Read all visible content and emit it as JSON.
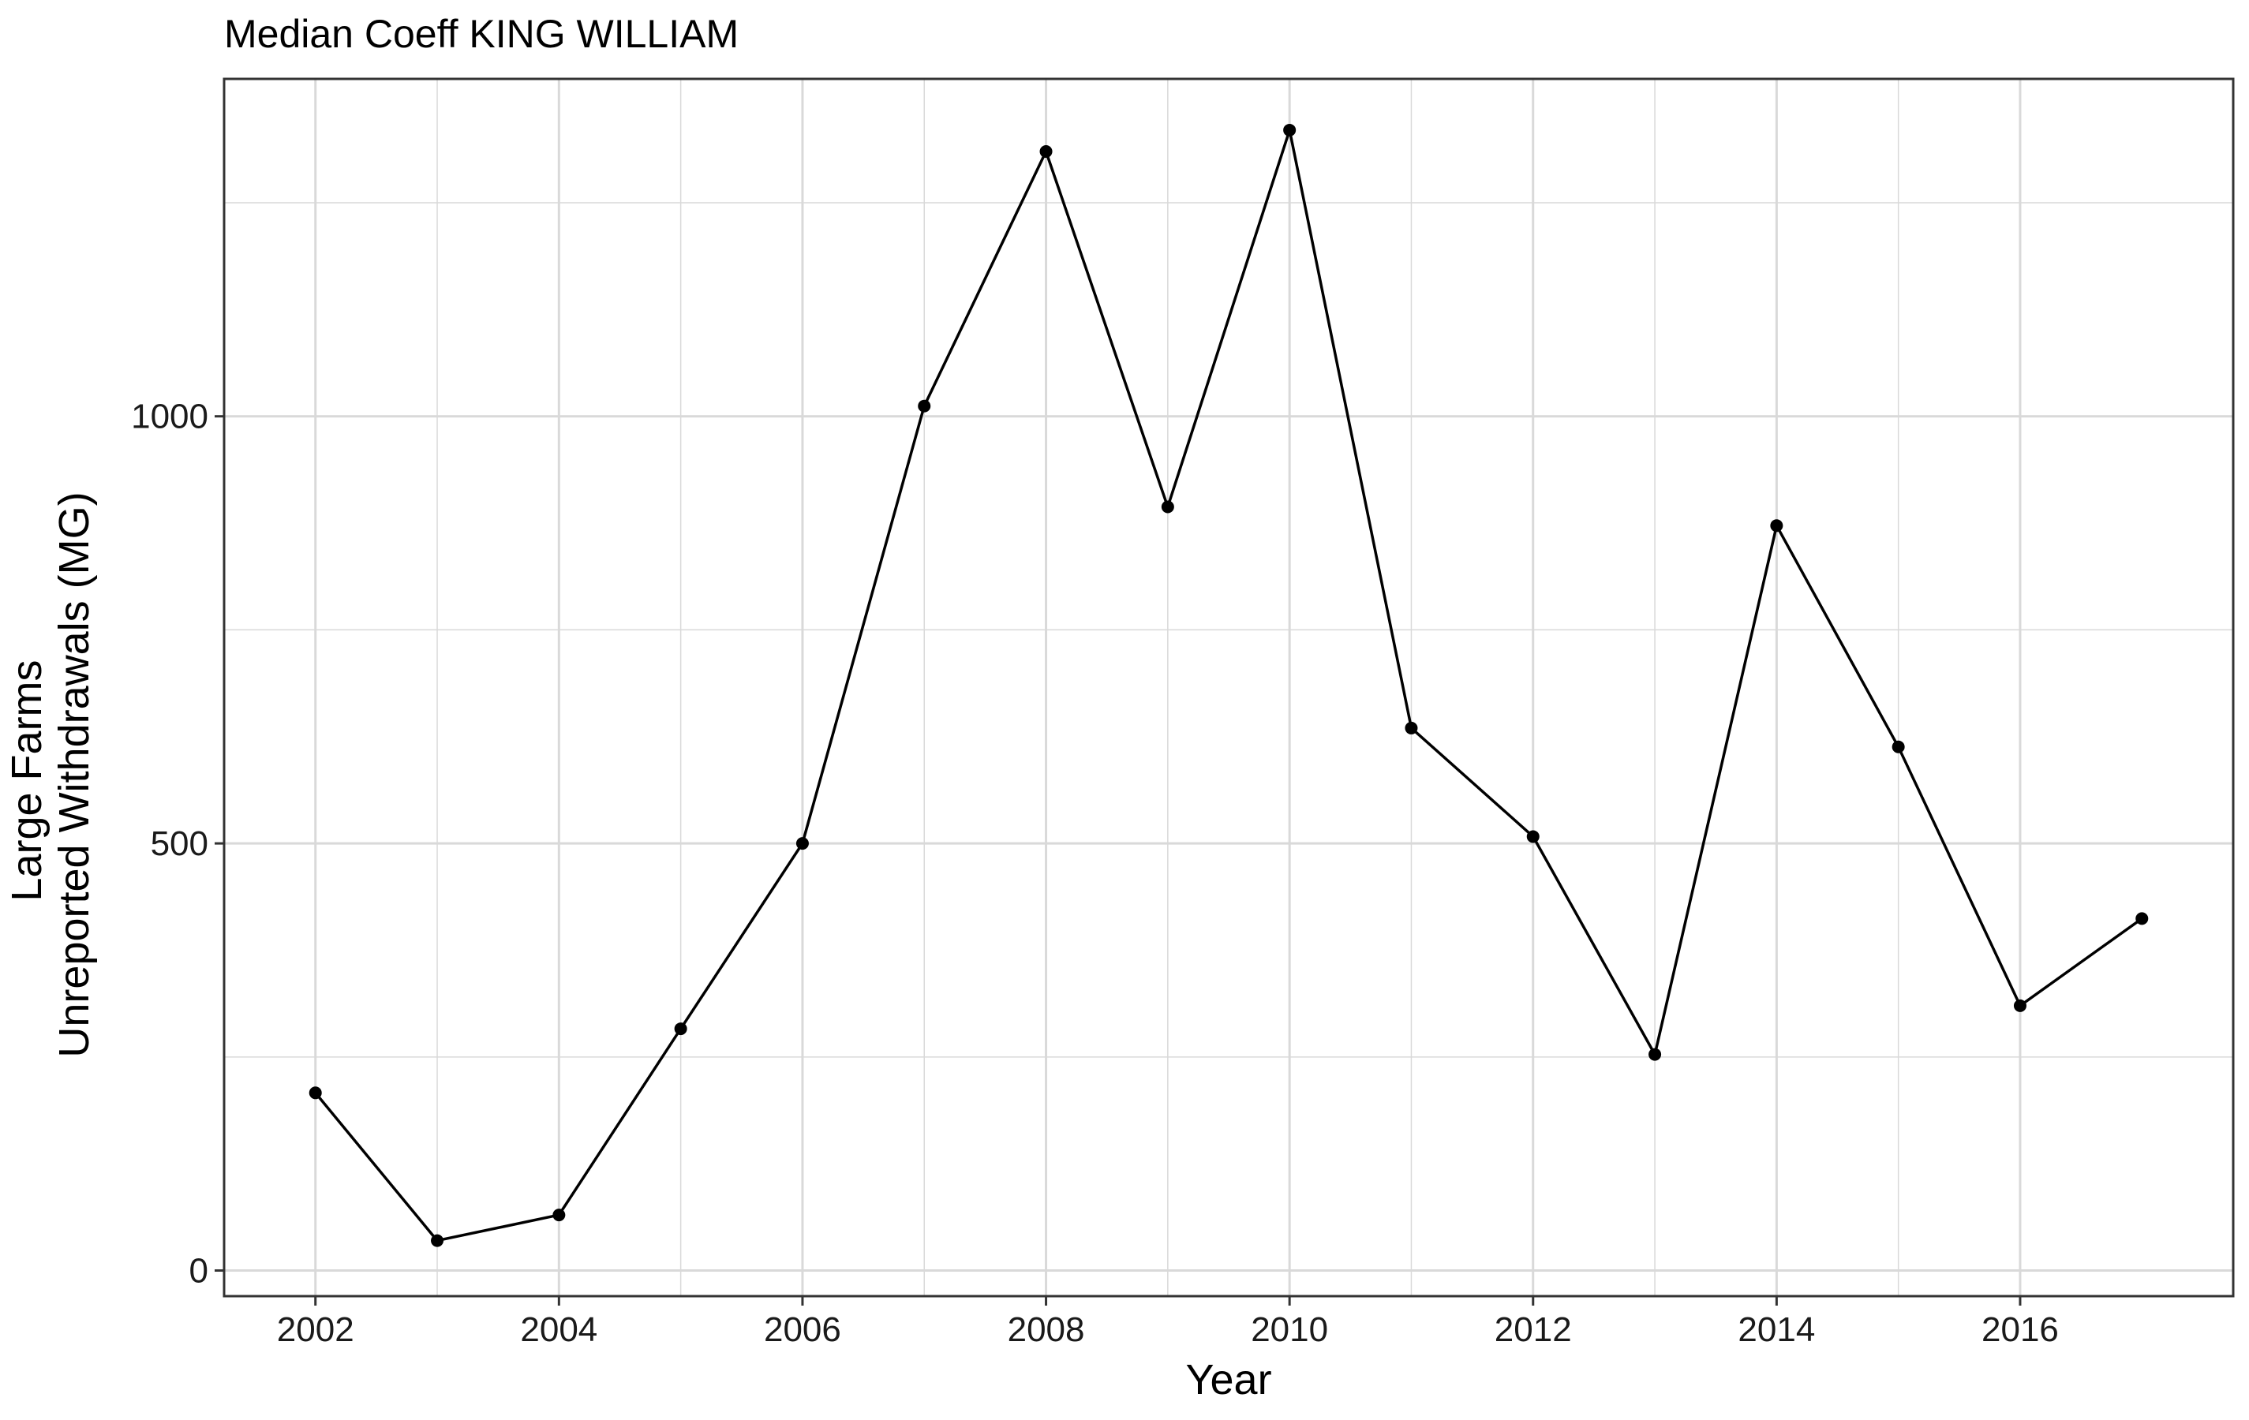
{
  "chart_data": {
    "type": "line",
    "title": "Median Coeff KING WILLIAM",
    "xlabel": "Year",
    "ylabel_lines": [
      "Large Farms",
      "Unreported Withdrawals (MG)"
    ],
    "x": [
      2002,
      2003,
      2004,
      2005,
      2006,
      2007,
      2008,
      2009,
      2010,
      2011,
      2012,
      2013,
      2014,
      2015,
      2016,
      2017
    ],
    "series": [
      {
        "values": [
          208,
          35,
          65,
          283,
          500,
          1012,
          1310,
          894,
          1335,
          635,
          508,
          253,
          872,
          613,
          310,
          412
        ]
      }
    ],
    "xlim": [
      2001.25,
      2017.75
    ],
    "ylim": [
      -30,
      1395
    ],
    "x_ticks": [
      2002,
      2004,
      2006,
      2008,
      2010,
      2012,
      2014,
      2016
    ],
    "y_ticks": [
      0,
      500,
      1000
    ],
    "grid": true,
    "legend": "none",
    "colors": {
      "line": "#000000",
      "grid": "#d9d9d9",
      "panel_border": "#333333",
      "background": "#ffffff"
    }
  }
}
